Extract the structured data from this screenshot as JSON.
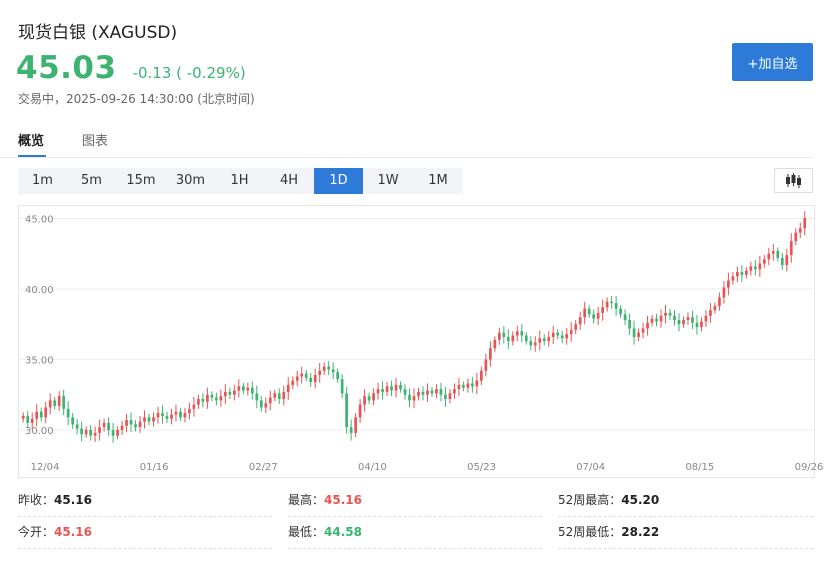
{
  "header": {
    "title": "现货白银 (XAGUSD)",
    "price": "45.03",
    "change": "-0.13 ( -0.29%)",
    "status": "交易中，2025-09-26 14:30:00 (北京时间)",
    "add_button": "+加自选"
  },
  "tabs": [
    {
      "label": "概览",
      "active": true
    },
    {
      "label": "图表",
      "active": false
    }
  ],
  "periods": [
    "1m",
    "5m",
    "15m",
    "30m",
    "1H",
    "4H",
    "1D",
    "1W",
    "1M"
  ],
  "active_period": "1D",
  "chart_type_icon": "candlestick-icon",
  "colors": {
    "up": "#e85353",
    "down": "#3cb371",
    "accent": "#2d7ad9"
  },
  "chart_data": {
    "type": "candlestick",
    "x_tick_labels": [
      "12/04",
      "01/16",
      "02/27",
      "04/10",
      "05/23",
      "07/04",
      "08/15",
      "09/26"
    ],
    "y_tick_labels": [
      "45.00",
      "40.00",
      "35.00",
      "30.00"
    ],
    "ylim": [
      28.3,
      45.6
    ],
    "close": [
      31.0,
      30.5,
      30.8,
      31.3,
      30.9,
      31.6,
      32.1,
      31.7,
      32.4,
      31.5,
      30.9,
      30.4,
      30.1,
      29.7,
      30.0,
      29.6,
      29.8,
      30.2,
      30.5,
      30.0,
      29.6,
      30.0,
      30.3,
      30.7,
      30.4,
      30.2,
      30.6,
      30.9,
      30.6,
      30.9,
      31.2,
      31.0,
      30.8,
      31.1,
      31.3,
      30.9,
      31.2,
      31.5,
      31.8,
      32.2,
      32.0,
      32.5,
      32.3,
      32.1,
      32.4,
      32.7,
      32.5,
      32.8,
      33.1,
      32.8,
      33.0,
      32.6,
      32.1,
      31.6,
      31.9,
      32.3,
      32.6,
      32.2,
      32.7,
      33.2,
      33.5,
      33.8,
      34.0,
      33.7,
      33.4,
      33.9,
      34.2,
      34.5,
      34.3,
      34.1,
      33.6,
      32.6,
      30.2,
      29.8,
      30.9,
      31.8,
      32.4,
      32.1,
      32.6,
      32.9,
      32.7,
      33.1,
      32.8,
      33.2,
      32.9,
      32.5,
      32.1,
      32.4,
      32.7,
      32.5,
      32.8,
      32.6,
      32.9,
      32.5,
      32.2,
      32.6,
      32.9,
      33.2,
      33.0,
      33.3,
      33.1,
      33.5,
      34.2,
      35.0,
      35.8,
      36.4,
      36.9,
      36.6,
      36.3,
      36.7,
      37.0,
      36.7,
      36.3,
      36.0,
      36.2,
      36.5,
      36.3,
      36.6,
      36.9,
      36.7,
      36.5,
      36.8,
      37.1,
      37.5,
      38.0,
      38.6,
      38.2,
      37.9,
      38.3,
      38.7,
      39.1,
      39.0,
      38.6,
      38.2,
      37.8,
      37.2,
      36.6,
      36.9,
      37.2,
      37.6,
      37.9,
      37.7,
      38.1,
      38.3,
      38.1,
      37.8,
      37.5,
      37.8,
      38.0,
      37.6,
      37.3,
      37.7,
      38.1,
      38.5,
      38.8,
      39.4,
      40.1,
      40.6,
      40.9,
      41.2,
      41.0,
      41.3,
      41.6,
      41.4,
      41.8,
      42.1,
      42.5,
      42.7,
      42.2,
      41.7,
      42.4,
      43.4,
      44.0,
      44.3,
      45.03
    ]
  },
  "stats": [
    [
      {
        "label": "昨收：",
        "value": "45.16",
        "tone": "dark"
      },
      {
        "label": "最高：",
        "value": "45.16",
        "tone": "red"
      },
      {
        "label": "52周最高：",
        "value": "45.20",
        "tone": "dark"
      }
    ],
    [
      {
        "label": "今开：",
        "value": "45.16",
        "tone": "red"
      },
      {
        "label": "最低：",
        "value": "44.58",
        "tone": "green"
      },
      {
        "label": "52周最低：",
        "value": "28.22",
        "tone": "dark"
      }
    ]
  ]
}
